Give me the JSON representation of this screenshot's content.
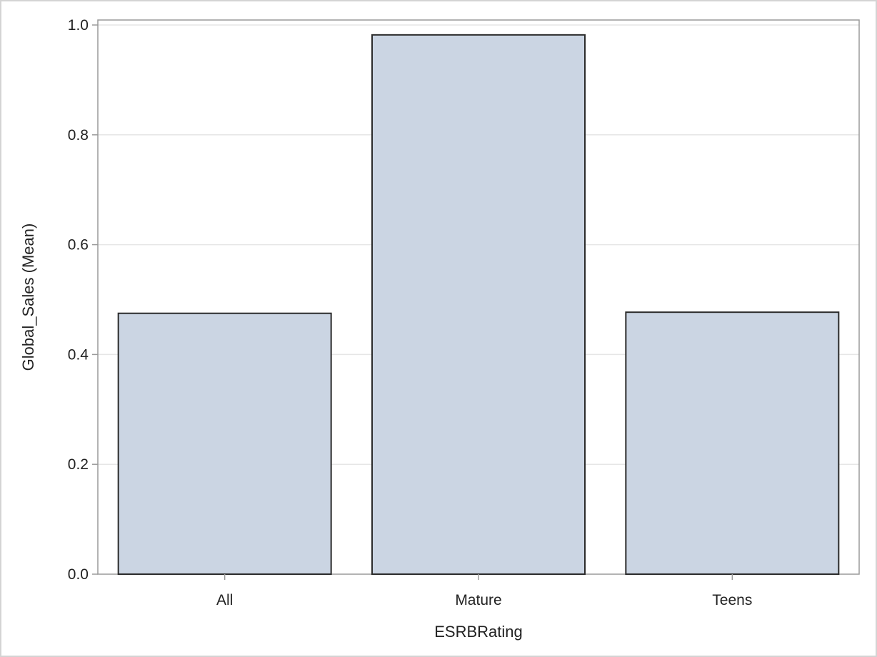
{
  "chart_data": {
    "type": "bar",
    "xlabel": "ESRBRating",
    "ylabel": "Global_Sales (Mean)",
    "categories": [
      "All",
      "Mature",
      "Teens"
    ],
    "values": [
      0.475,
      0.982,
      0.477
    ],
    "ylim": [
      0,
      1.0
    ],
    "yticks": [
      "0.0",
      "0.2",
      "0.4",
      "0.6",
      "0.8",
      "1.0"
    ],
    "grid": true,
    "colors": {
      "bar_fill": "#cbd5e3",
      "bar_stroke": "#2b2b2b",
      "grid": "#e6e6e6",
      "axis": "#9a9a9a"
    }
  }
}
